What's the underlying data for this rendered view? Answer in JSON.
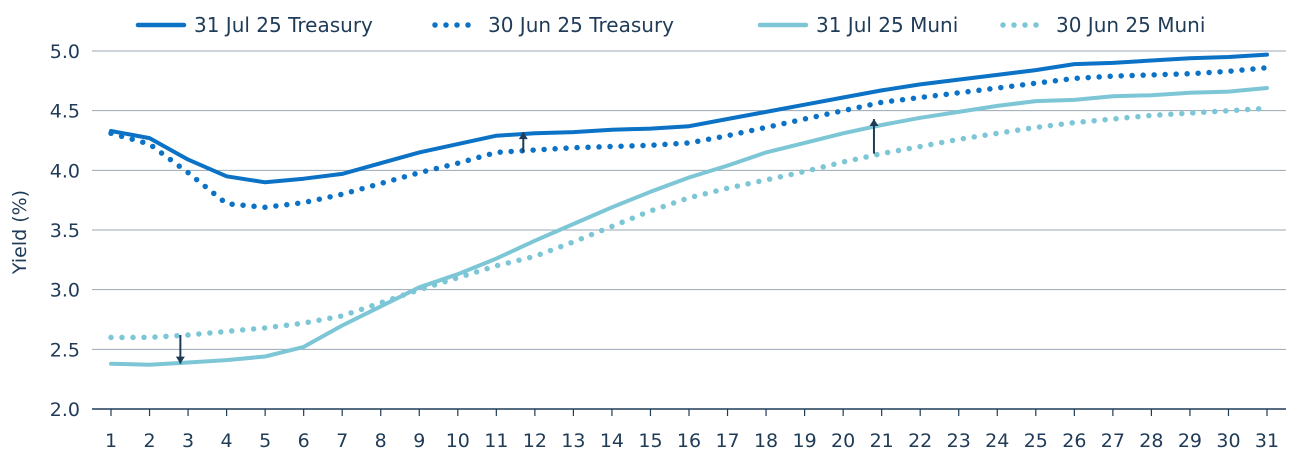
{
  "chart_data": {
    "type": "line",
    "title": "",
    "xlabel": "",
    "ylabel": "Yield (%)",
    "ylim": [
      2.0,
      5.0
    ],
    "yticks": [
      "2.0",
      "2.5",
      "3.0",
      "3.5",
      "4.0",
      "4.5",
      "5.0"
    ],
    "x": [
      1,
      2,
      3,
      4,
      5,
      6,
      7,
      8,
      9,
      10,
      11,
      12,
      13,
      14,
      15,
      16,
      17,
      18,
      19,
      20,
      21,
      22,
      23,
      24,
      25,
      26,
      27,
      28,
      29,
      30,
      31
    ],
    "grid": "horizontal",
    "legend_position": "top",
    "series": [
      {
        "name": "31 Jul 25 Treasury",
        "color": "#0b72c6",
        "style": "solid",
        "values": [
          4.33,
          4.27,
          4.09,
          3.95,
          3.9,
          3.93,
          3.97,
          4.06,
          4.15,
          4.22,
          4.29,
          4.31,
          4.32,
          4.34,
          4.35,
          4.37,
          4.43,
          4.49,
          4.55,
          4.61,
          4.67,
          4.72,
          4.76,
          4.8,
          4.84,
          4.89,
          4.9,
          4.92,
          4.94,
          4.95,
          4.97
        ]
      },
      {
        "name": "30 Jun 25 Treasury",
        "color": "#0b72c6",
        "style": "dotted",
        "values": [
          4.31,
          4.22,
          3.98,
          3.72,
          3.69,
          3.73,
          3.8,
          3.89,
          3.98,
          4.06,
          4.15,
          4.17,
          4.19,
          4.2,
          4.21,
          4.23,
          4.29,
          4.36,
          4.43,
          4.5,
          4.57,
          4.61,
          4.65,
          4.69,
          4.73,
          4.77,
          4.79,
          4.8,
          4.81,
          4.83,
          4.86
        ]
      },
      {
        "name": "31 Jul 25 Muni",
        "color": "#7cc6d6",
        "style": "solid",
        "values": [
          2.38,
          2.37,
          2.39,
          2.41,
          2.44,
          2.52,
          2.7,
          2.86,
          3.02,
          3.13,
          3.26,
          3.41,
          3.55,
          3.69,
          3.82,
          3.94,
          4.04,
          4.15,
          4.23,
          4.31,
          4.38,
          4.44,
          4.49,
          4.54,
          4.58,
          4.59,
          4.62,
          4.63,
          4.65,
          4.66,
          4.69
        ]
      },
      {
        "name": "30 Jun 25 Muni",
        "color": "#7cc6d6",
        "style": "dotted",
        "values": [
          2.6,
          2.6,
          2.62,
          2.65,
          2.68,
          2.72,
          2.78,
          2.89,
          3.0,
          3.1,
          3.2,
          3.28,
          3.4,
          3.53,
          3.66,
          3.77,
          3.85,
          3.92,
          3.99,
          4.07,
          4.14,
          4.2,
          4.26,
          4.31,
          4.36,
          4.4,
          4.43,
          4.46,
          4.48,
          4.5,
          4.52
        ]
      }
    ],
    "annotations": [
      {
        "kind": "arrow-down",
        "x": 2.8,
        "from": 2.62,
        "to": 2.38,
        "color": "#1f3b57"
      },
      {
        "kind": "arrow-up",
        "x": 11.7,
        "from": 4.15,
        "to": 4.32,
        "color": "#1f3b57"
      },
      {
        "kind": "arrow-up",
        "x": 20.8,
        "from": 4.14,
        "to": 4.43,
        "color": "#1f3b57"
      }
    ]
  }
}
